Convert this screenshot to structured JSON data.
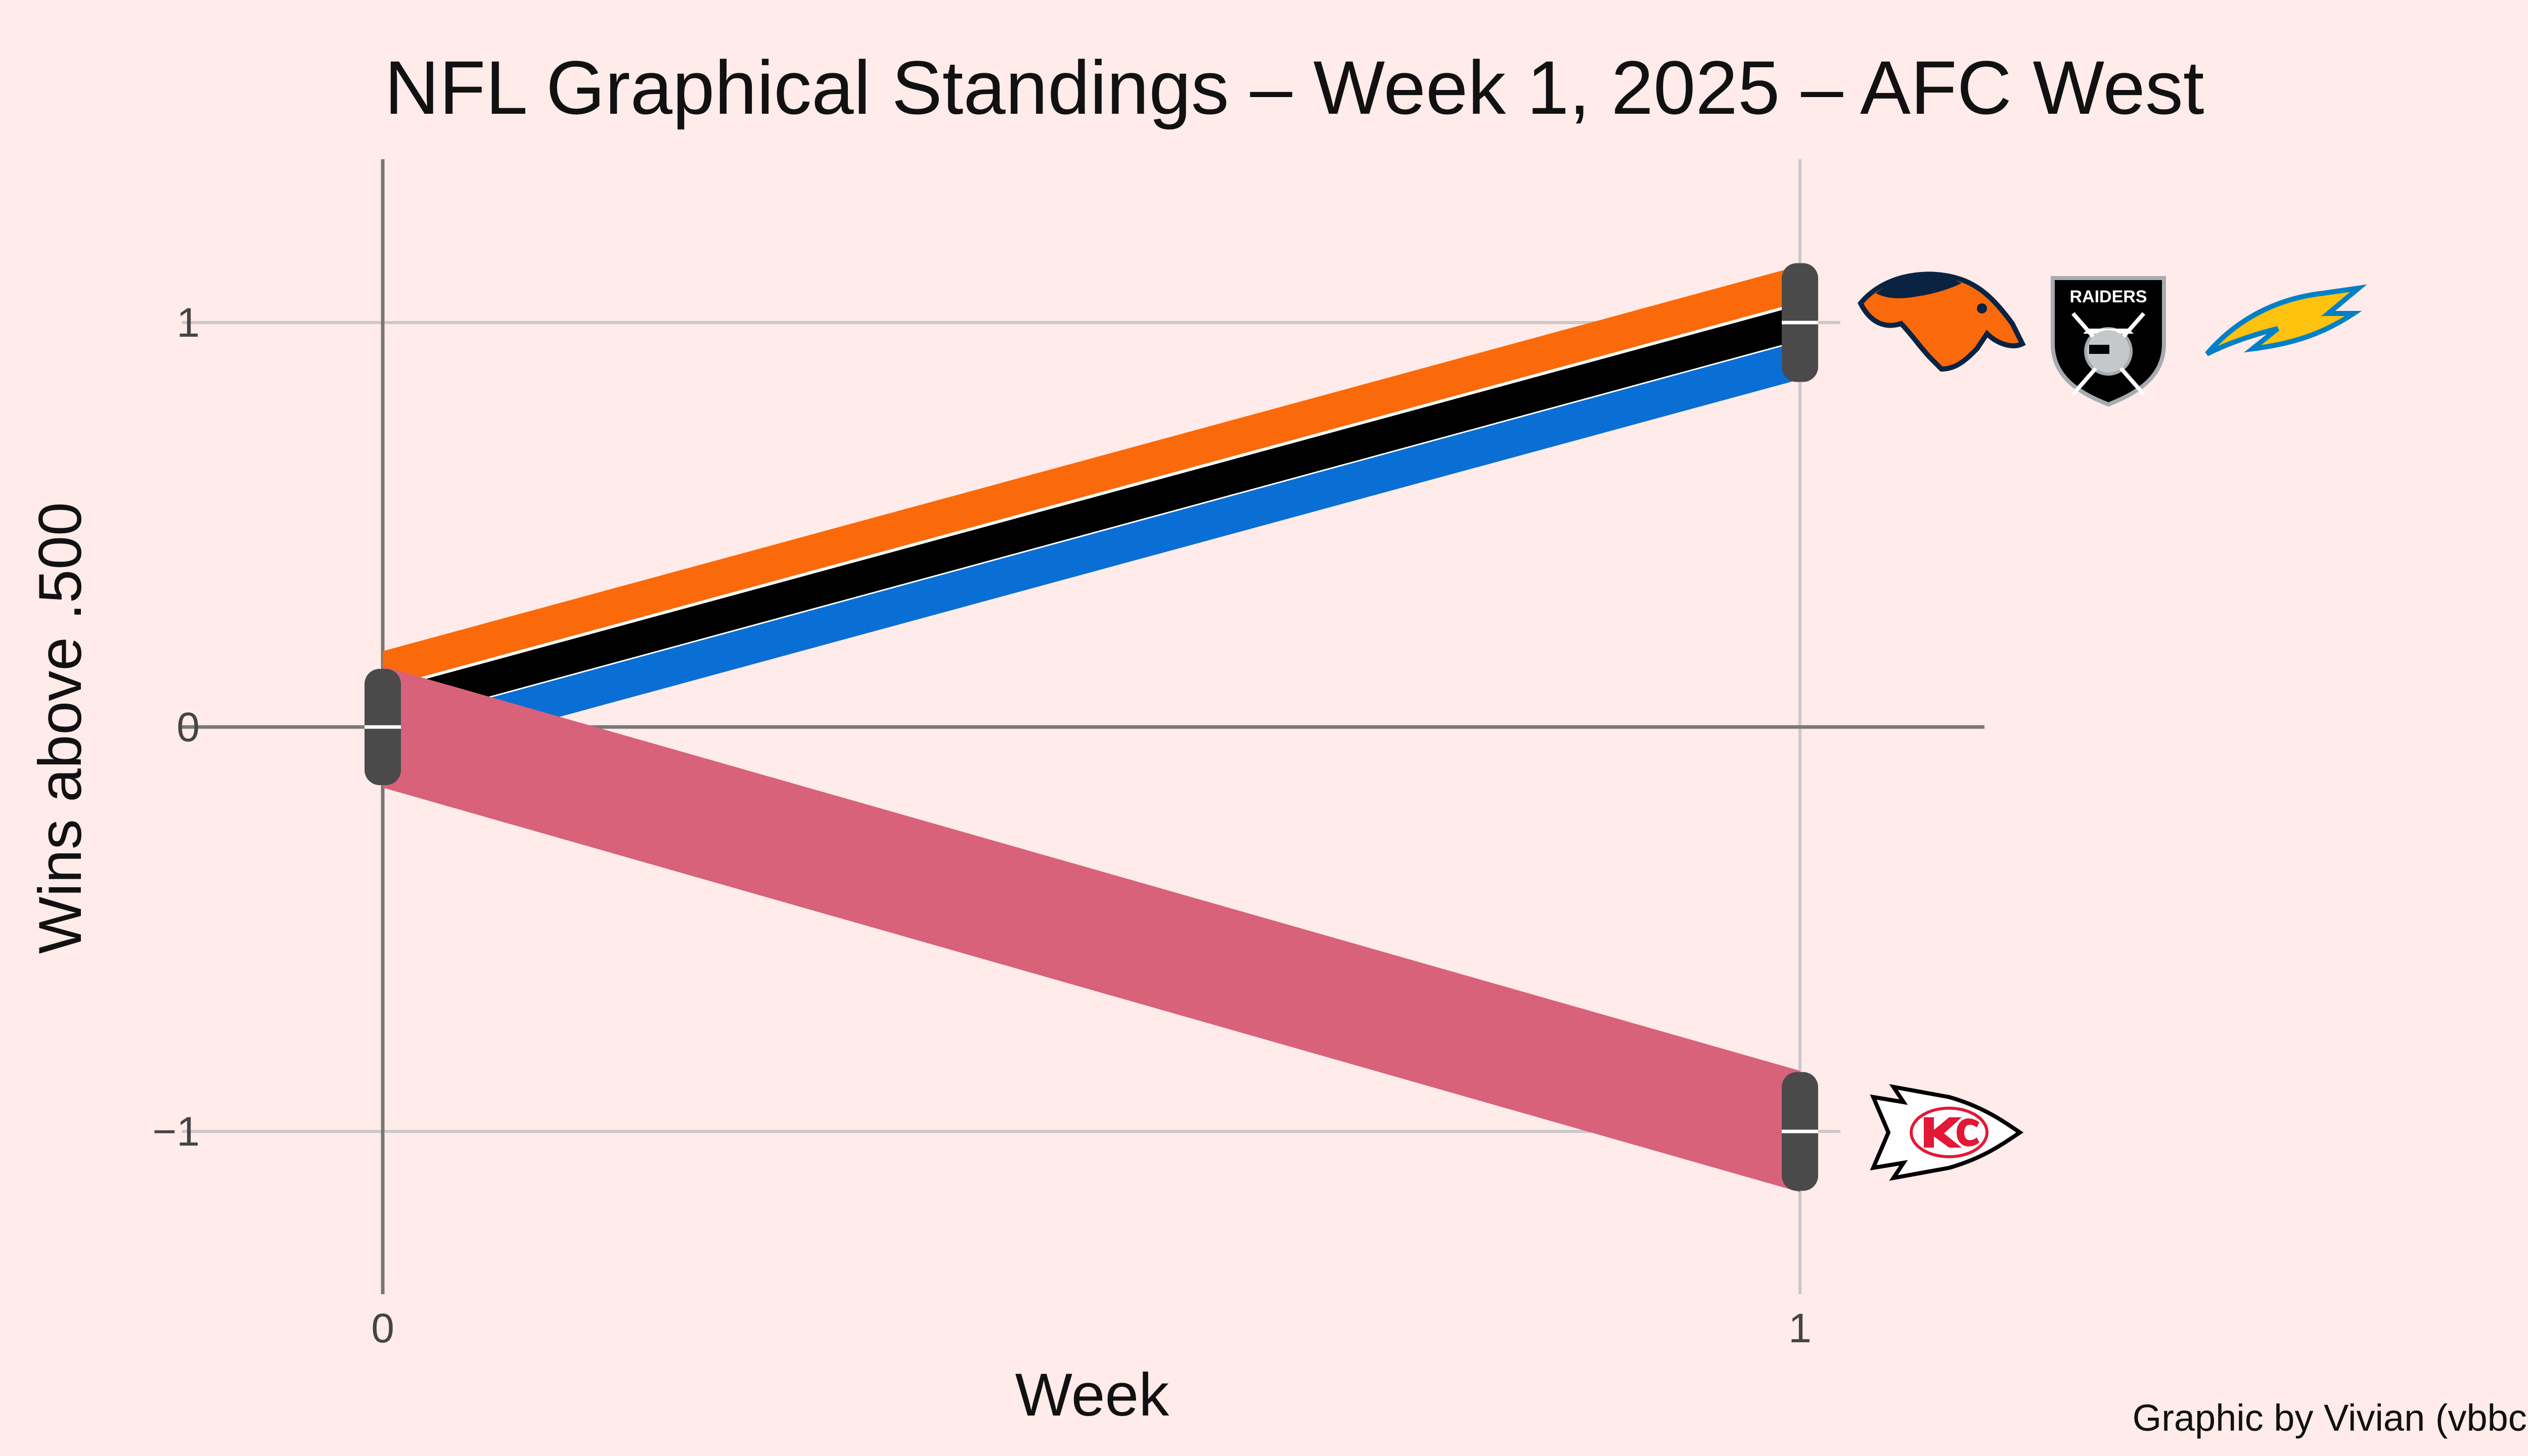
{
  "chart_data": {
    "type": "line",
    "title": "NFL Graphical Standings – Week 1, 2025 – AFC West",
    "xlabel": "Week",
    "ylabel": "Wins above .500",
    "credit": "Graphic by Vivian (vbbcla)",
    "xlim": [
      0,
      1.13
    ],
    "ylim": [
      -1.4,
      1.4
    ],
    "x_ticks": [
      0,
      1
    ],
    "x_tick_labels": [
      "0",
      "1"
    ],
    "y_ticks": [
      1,
      0,
      -1
    ],
    "y_tick_labels": [
      "1",
      "0",
      "−1"
    ],
    "grid": true,
    "x": [
      0,
      1
    ],
    "series": [
      {
        "name": "Denver Broncos",
        "values": [
          0,
          1
        ],
        "color": "#fb6a0a",
        "logo": "broncos-logo"
      },
      {
        "name": "Las Vegas Raiders",
        "values": [
          0,
          1
        ],
        "color": "#000000",
        "logo": "raiders-logo"
      },
      {
        "name": "Los Angeles Chargers",
        "values": [
          0,
          1
        ],
        "color": "#0a6fd4",
        "logo": "chargers-logo"
      },
      {
        "name": "Kansas City Chiefs",
        "values": [
          0,
          -1
        ],
        "color": "#d8627a",
        "logo": "chiefs-logo"
      }
    ],
    "logo_text": {
      "raiders": "RAIDERS"
    }
  }
}
